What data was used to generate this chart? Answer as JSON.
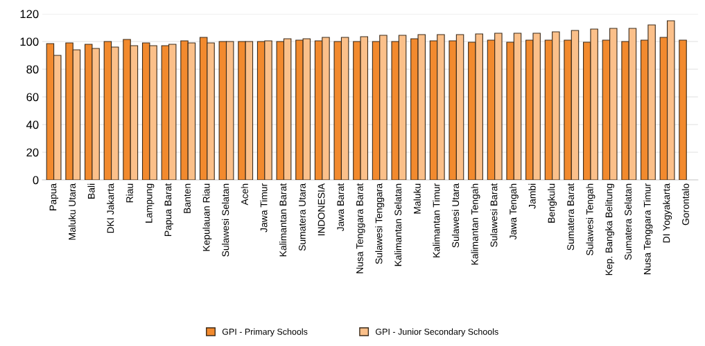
{
  "chart_data": {
    "type": "bar",
    "categories": [
      "Papua",
      "Maluku Utara",
      "Bali",
      "DKI Jakarta",
      "Riau",
      "Lampung",
      "Papua Barat",
      "Banten",
      "Kepulauan Riau",
      "Sulawesi Selatan",
      "Aceh",
      "Jawa Timur",
      "Kalimantan Barat",
      "Sumatera Utara",
      "INDONESIA",
      "Jawa Barat",
      "Nusa Tenggara Barat",
      "Sulawesi Tenggara",
      "Kalimantan Selatan",
      "Maluku",
      "Kalimantan Timur",
      "Sulawesi Utara",
      "Kalimantan Tengah",
      "Sulawesi Barat",
      "Jawa Tengah",
      "Jambi",
      "Bengkulu",
      "Sumatera Barat",
      "Sulawesi Tengah",
      "Kep. Bangka Belitung",
      "Sumatera Selatan",
      "Nusa Tenggara Timur",
      "DI Yogyakarta",
      "Gorontalo"
    ],
    "series": [
      {
        "name": "GPI - Primary Schools",
        "color": "#f28a2e",
        "values": [
          98.5,
          99,
          98,
          100,
          101.5,
          99,
          97,
          100.5,
          103,
          100,
          100,
          100,
          100,
          101,
          100.5,
          100,
          100,
          100,
          100,
          102,
          100.5,
          100.5,
          99.5,
          101,
          99.5,
          101,
          101,
          101,
          99.5,
          101,
          100,
          101,
          103,
          101
        ]
      },
      {
        "name": "GPI - Junior Secondary Schools",
        "color": "#fbc08a",
        "values": [
          90,
          94,
          95,
          96,
          97,
          97,
          98,
          99,
          99,
          100,
          100,
          100.5,
          102,
          102,
          103,
          103,
          103.5,
          104.5,
          104.5,
          105,
          105,
          105,
          105.5,
          106,
          106,
          106,
          107,
          108,
          109,
          109.5,
          109.5,
          112,
          115,
          null
        ]
      }
    ],
    "ylim": [
      0,
      120
    ],
    "yticks": [
      0,
      20,
      40,
      60,
      80,
      100,
      120
    ],
    "grid": "y",
    "legend": "bottom"
  }
}
